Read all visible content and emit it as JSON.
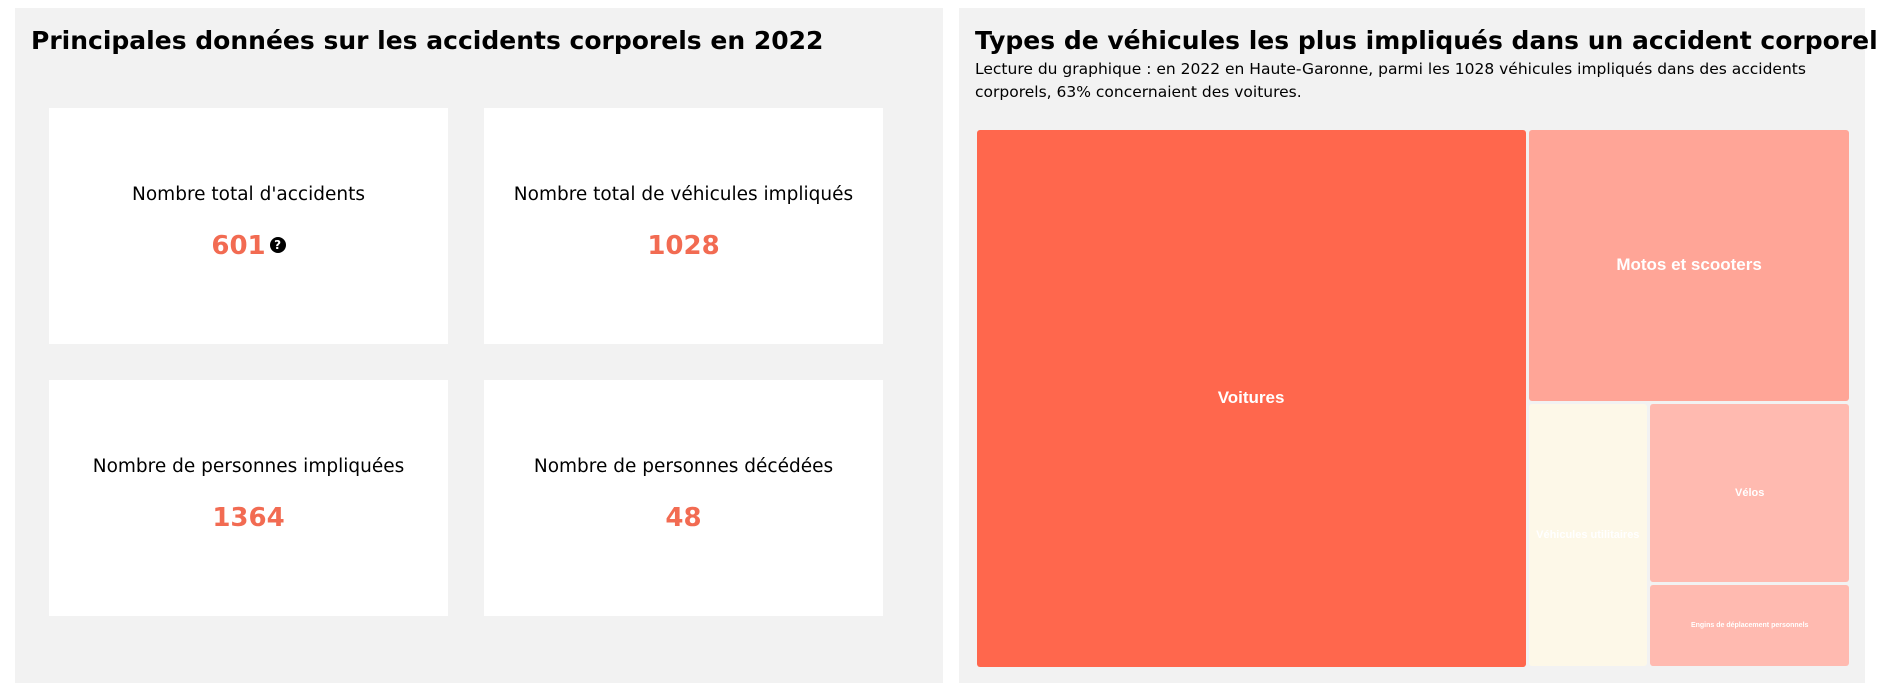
{
  "left": {
    "title": "Principales données sur les accidents corporels en 2022",
    "kpis": [
      {
        "label": "Nombre total d'accidents",
        "value": "601",
        "help_icon": "question-circle-icon"
      },
      {
        "label": "Nombre total de véhicules impliqués",
        "value": "1028"
      },
      {
        "label": "Nombre de personnes impliquées",
        "value": "1364"
      },
      {
        "label": "Nombre de personnes décédées",
        "value": "48"
      }
    ],
    "help_glyph": "?",
    "accent_color": "#f26b52"
  },
  "right": {
    "title": "Types de véhicules les plus impliqués dans un accident corporel",
    "subtitle": "Lecture du graphique : en 2022 en Haute-Garonne, parmi les 1028 véhicules impliqués dans des accidents corporels, 63% concernaient des voitures."
  },
  "chart_data": {
    "type": "treemap",
    "total": 1028,
    "items": [
      {
        "label": "Voitures",
        "value": 648,
        "color": "#ff674d"
      },
      {
        "label": "Motos et scooters",
        "value": 193,
        "color": "#ffa597"
      },
      {
        "label": "Véhicules utilitaires",
        "value": 70,
        "color": "#fdf8e8"
      },
      {
        "label": "Vélos",
        "value": 80,
        "color": "#ffbab0"
      },
      {
        "label": "Engins de déplacement personnels",
        "value": 37,
        "color": "#ffbab0"
      }
    ]
  }
}
